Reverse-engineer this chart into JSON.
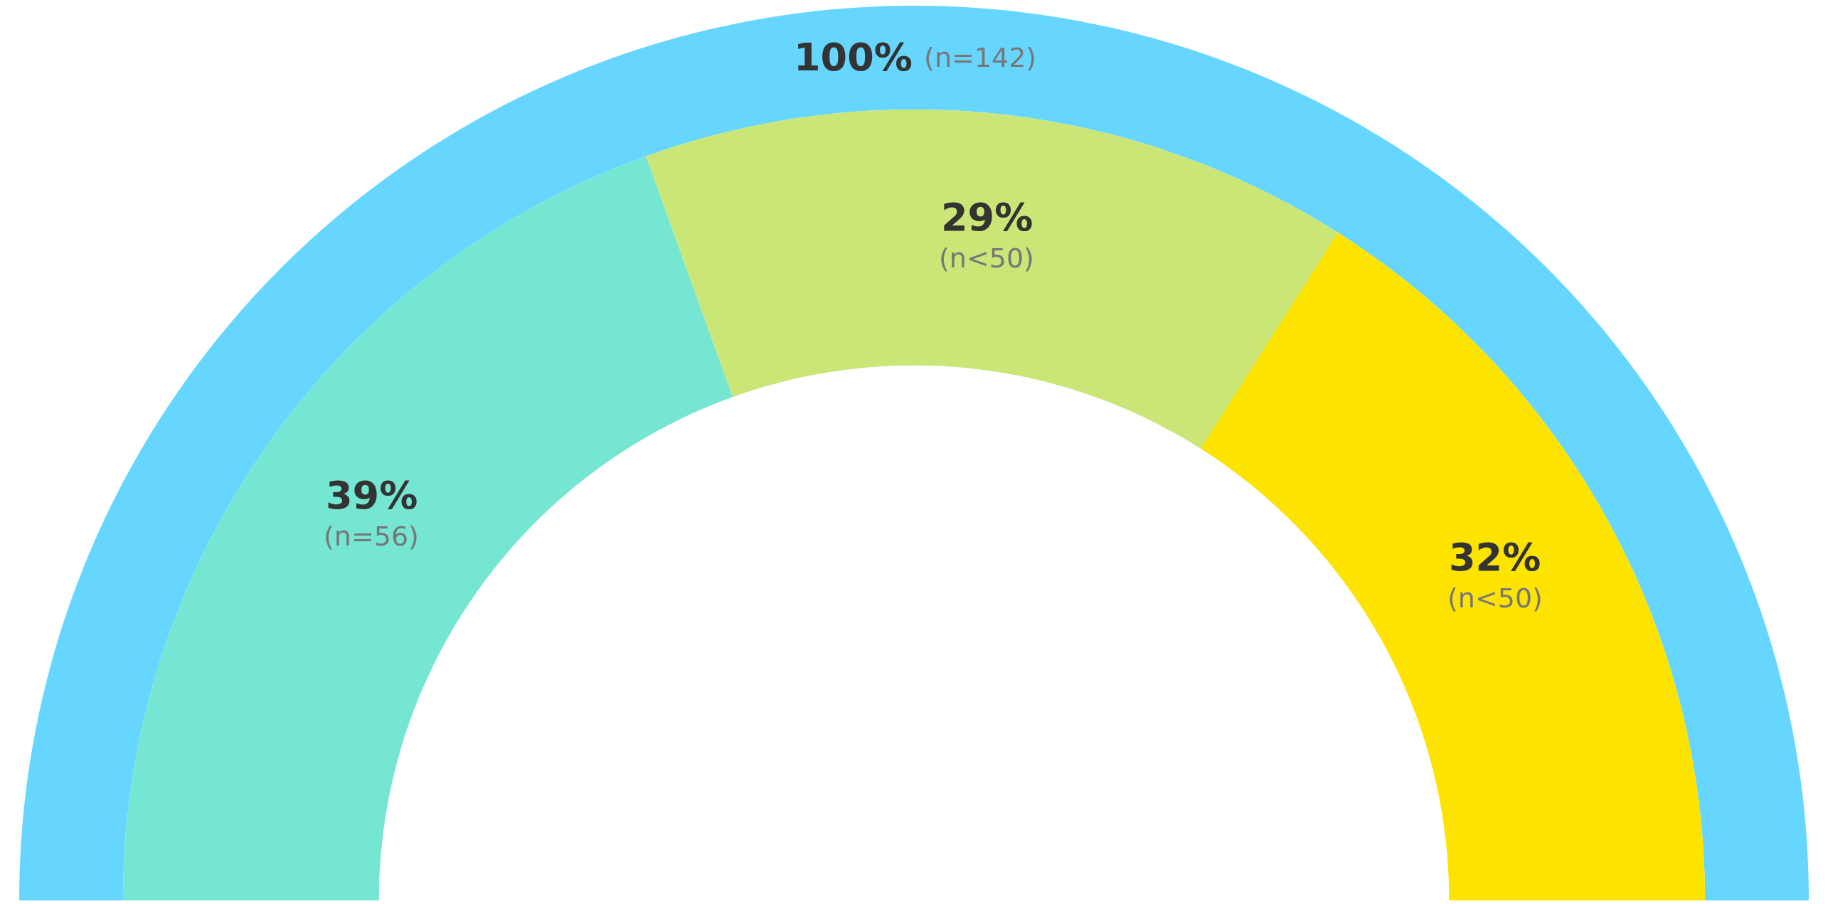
{
  "chart_data": {
    "type": "donut",
    "categories": [
      null,
      null,
      null
    ],
    "series": [
      {
        "values": [
          100,
          null,
          null
        ],
        "colors": [
          "#66d6ff",
          null,
          null
        ],
        "value_labels": [
          "100%",
          null,
          null
        ]
      },
      {
        "values": [
          39,
          29,
          32
        ],
        "colors": [
          "#75e6d2",
          "#c9e676",
          "#fde400"
        ],
        "value_labels": [
          "39%",
          "29%",
          "32%"
        ]
      }
    ],
    "annotations": [
      "(n=142)",
      "(n=56)",
      "(n<50)",
      "(n<50)"
    ]
  }
}
